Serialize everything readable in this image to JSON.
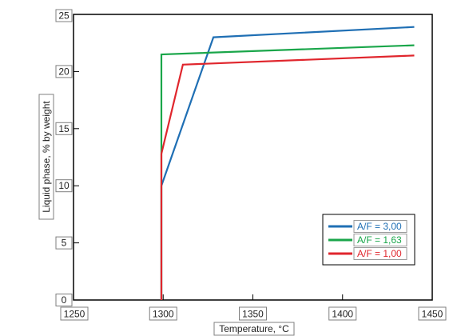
{
  "chart_data": {
    "type": "line",
    "title": "",
    "xlabel": "Temperature, °C",
    "ylabel": "Liquid phase, % by weight",
    "xlim": [
      1250,
      1450
    ],
    "ylim": [
      0,
      25
    ],
    "x_ticks": [
      "1250",
      "1300",
      "1350",
      "1400",
      "1450"
    ],
    "y_ticks": [
      "0",
      "5",
      "10",
      "15",
      "20",
      "25"
    ],
    "grid": false,
    "legend_position": "bottom-right",
    "series": [
      {
        "name": "A/F = 3,00",
        "color": "#1f6fb4",
        "points": [
          [
            1299,
            0
          ],
          [
            1299,
            10
          ],
          [
            1328,
            23
          ],
          [
            1440,
            23.9
          ]
        ]
      },
      {
        "name": "A/F = 1,63",
        "color": "#1aa64a",
        "points": [
          [
            1299,
            0
          ],
          [
            1299,
            21.5
          ],
          [
            1440,
            22.3
          ]
        ]
      },
      {
        "name": "A/F = 1,00",
        "color": "#e0262d",
        "points": [
          [
            1299,
            0
          ],
          [
            1299,
            12.8
          ],
          [
            1311,
            20.6
          ],
          [
            1440,
            21.4
          ]
        ]
      }
    ]
  }
}
